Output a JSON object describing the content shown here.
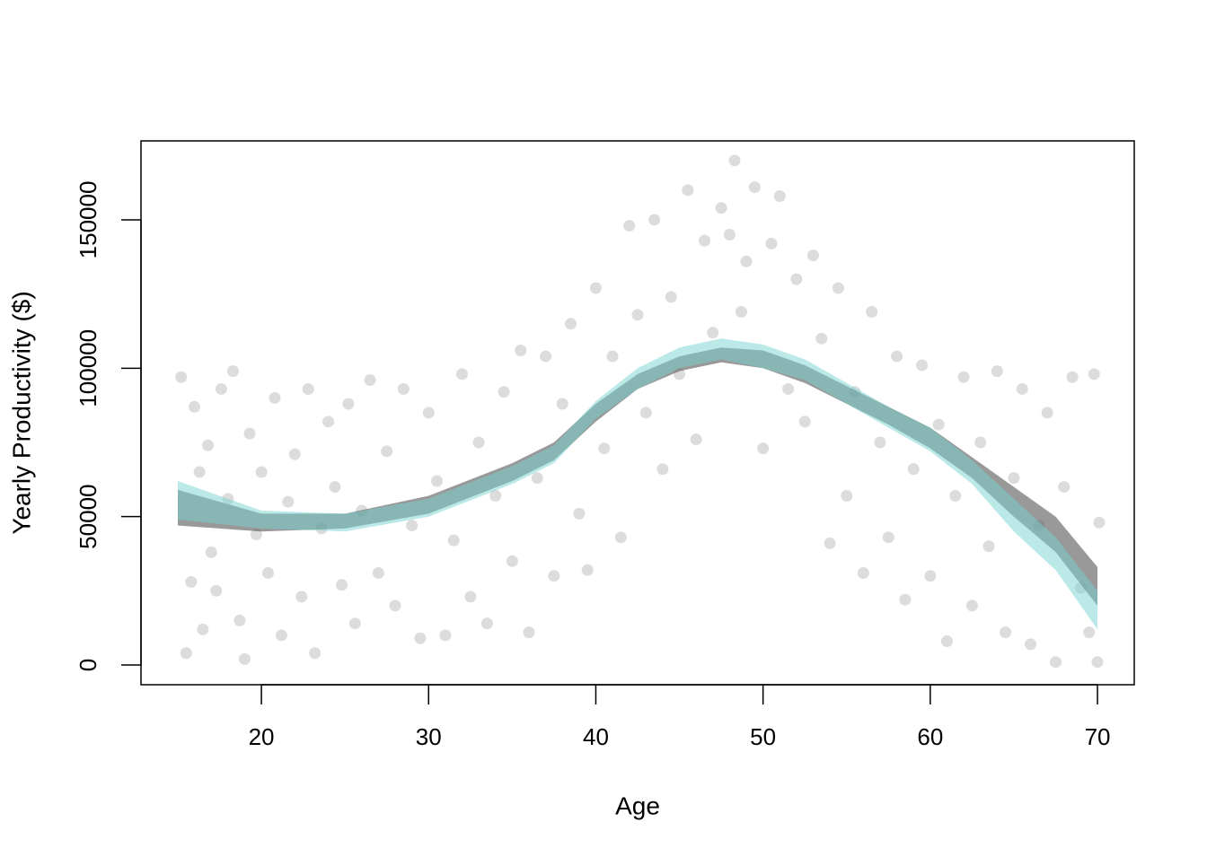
{
  "chart_data": {
    "type": "scatter",
    "xlabel": "Age",
    "ylabel": "Yearly Productivity ($)",
    "xlim": [
      12.8,
      72.2
    ],
    "ylim": [
      -6650,
      176600
    ],
    "xticks": [
      20,
      30,
      40,
      50,
      60,
      70
    ],
    "yticks": [
      0,
      50000,
      100000,
      150000
    ],
    "point_color": "rgba(140,140,140,0.3)",
    "x": [
      15.2,
      15.5,
      15.8,
      16,
      16.3,
      16.5,
      16.8,
      17,
      17.3,
      17.6,
      18,
      18.3,
      18.7,
      19,
      19.3,
      19.7,
      20,
      20.4,
      20.8,
      21.2,
      21.6,
      22,
      22.4,
      22.8,
      23.2,
      23.6,
      24,
      24.4,
      24.8,
      25.2,
      25.6,
      26,
      26.5,
      27,
      27.5,
      28,
      28.5,
      29,
      29.5,
      30,
      30.5,
      31,
      31.5,
      32,
      32.5,
      33,
      33.5,
      34,
      34.5,
      35,
      35.5,
      36,
      36.5,
      37,
      37.5,
      38,
      38.5,
      39,
      39.5,
      40,
      40.5,
      41,
      41.5,
      42,
      42.5,
      43,
      43.5,
      44,
      44.5,
      45,
      45.5,
      46,
      46.5,
      47,
      47.5,
      48,
      48.3,
      48.7,
      49,
      49.5,
      50,
      50.5,
      51,
      51.5,
      52,
      52.5,
      53,
      53.5,
      54,
      54.5,
      55,
      55.5,
      56,
      56.5,
      57,
      57.5,
      58,
      58.5,
      59,
      59.5,
      60,
      60.5,
      61,
      61.5,
      62,
      62.5,
      63,
      63.5,
      64,
      64.5,
      65,
      65.5,
      66,
      66.5,
      67,
      67.5,
      68,
      68.5,
      69,
      69.5,
      69.8,
      70,
      70.1
    ],
    "y": [
      97000,
      4000,
      28000,
      87000,
      65000,
      12000,
      74000,
      38000,
      25000,
      93000,
      56000,
      99000,
      15000,
      2000,
      78000,
      44000,
      65000,
      31000,
      90000,
      10000,
      55000,
      71000,
      23000,
      93000,
      4000,
      46000,
      82000,
      60000,
      27000,
      88000,
      14000,
      52000,
      96000,
      31000,
      72000,
      20000,
      93000,
      47000,
      9000,
      85000,
      62000,
      10000,
      42000,
      98000,
      23000,
      75000,
      14000,
      57000,
      92000,
      35000,
      106000,
      11000,
      63000,
      104000,
      30000,
      88000,
      115000,
      51000,
      32000,
      127000,
      73000,
      104000,
      43000,
      148000,
      118000,
      85000,
      150000,
      66000,
      124000,
      98000,
      160000,
      76000,
      143000,
      112000,
      154000,
      145000,
      170000,
      119000,
      136000,
      161000,
      73000,
      142000,
      158000,
      93000,
      130000,
      82000,
      138000,
      110000,
      41000,
      127000,
      57000,
      92000,
      31000,
      119000,
      75000,
      43000,
      104000,
      22000,
      66000,
      101000,
      30000,
      81000,
      8000,
      57000,
      97000,
      20000,
      75000,
      40000,
      99000,
      11000,
      63000,
      93000,
      7000,
      47000,
      85000,
      1000,
      60000,
      97000,
      26000,
      11000,
      98000,
      1000,
      48000
    ],
    "band_x": [
      15,
      20,
      25,
      30,
      35,
      37.5,
      40,
      42.5,
      45,
      47.5,
      50,
      52.5,
      55,
      57.5,
      60,
      62.5,
      65,
      67.5,
      70
    ],
    "bands": [
      {
        "color": "rgba(85,85,85,0.6)",
        "lower": [
          47000,
          45000,
          46000,
          51000,
          62000,
          69000,
          82000,
          93000,
          99000,
          102000,
          100000,
          95000,
          88000,
          81000,
          73000,
          63000,
          50000,
          38000,
          20000
        ],
        "upper": [
          59000,
          51000,
          51000,
          57000,
          68000,
          75000,
          88000,
          98000,
          104000,
          107000,
          106000,
          101000,
          94000,
          87000,
          80000,
          70000,
          60000,
          50000,
          33000
        ]
      },
      {
        "color": "rgba(120,212,210,0.5)",
        "lower": [
          49000,
          46000,
          45000,
          50000,
          61000,
          68000,
          83000,
          93000,
          100000,
          103000,
          100000,
          96000,
          88000,
          80000,
          72000,
          61000,
          45000,
          32000,
          12000
        ],
        "upper": [
          62000,
          52000,
          51000,
          56000,
          67000,
          74000,
          89000,
          100000,
          107000,
          110000,
          108000,
          103000,
          95000,
          87000,
          80000,
          69000,
          56000,
          43000,
          25000
        ]
      }
    ]
  }
}
